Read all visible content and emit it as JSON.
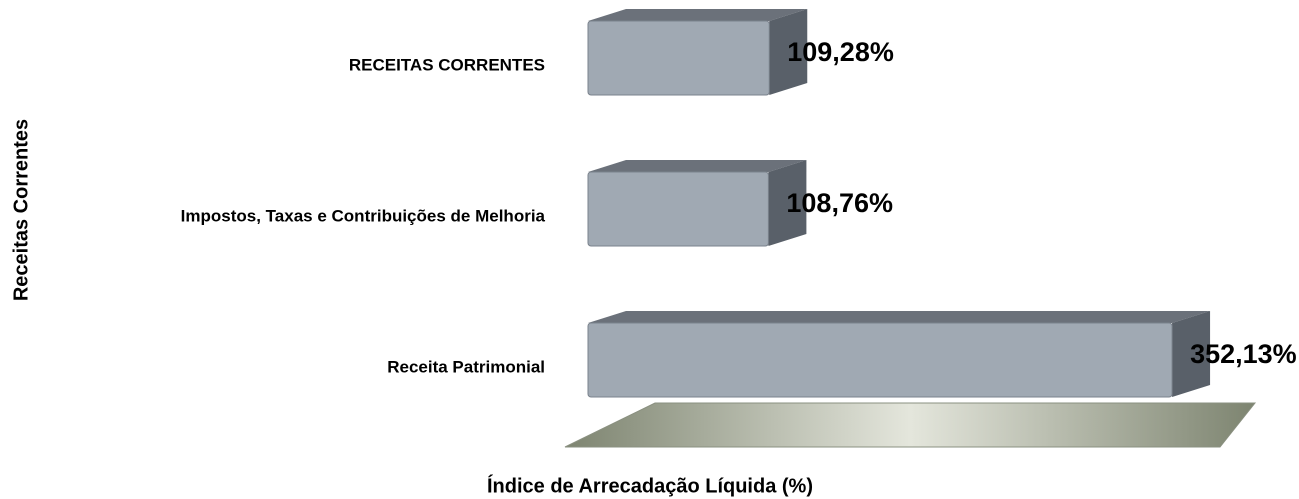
{
  "chart_data": {
    "type": "bar",
    "orientation": "horizontal",
    "xlabel": "Índice de Arrecadação Líquida (%)",
    "ylabel": "Receitas Correntes",
    "categories": [
      "RECEITAS CORRENTES",
      "Impostos, Taxas e Contribuições de Melhoria",
      "Receita Patrimonial"
    ],
    "values": [
      109.28,
      108.76,
      352.13
    ],
    "value_labels": [
      "109,28%",
      "108,76%",
      "352,13%"
    ],
    "color": "#a0a9b3",
    "xlim": [
      0,
      375
    ]
  }
}
